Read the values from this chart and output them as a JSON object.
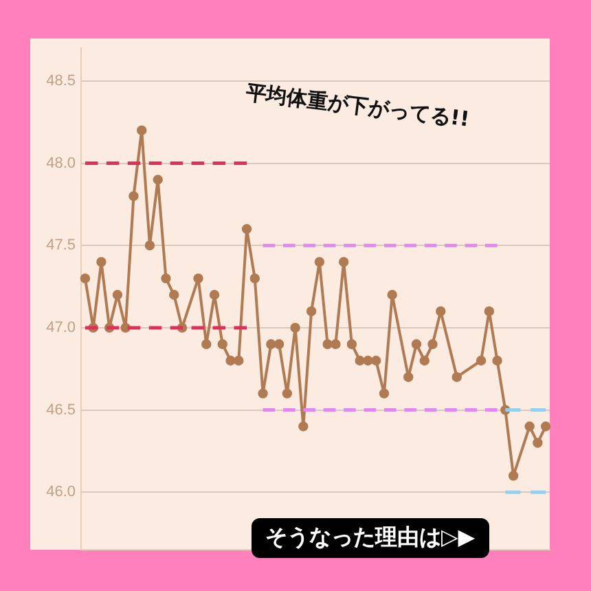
{
  "chart_data": {
    "type": "line",
    "categories": [
      null,
      null,
      null,
      null,
      null,
      null,
      null,
      null,
      null,
      null,
      null,
      null,
      null,
      null,
      null,
      null,
      null,
      null,
      null,
      null,
      null,
      null,
      null,
      null,
      null,
      null,
      null,
      null,
      null,
      null,
      null,
      null,
      null,
      null,
      null,
      null,
      null,
      null,
      null,
      null,
      null,
      null,
      null,
      null,
      null,
      null,
      null,
      null,
      null,
      null,
      null,
      null,
      null,
      null,
      null,
      null,
      null,
      null
    ],
    "series": [
      {
        "color": "#b07a52",
        "marker": "circle",
        "line_style": "solid",
        "values": [
          47.3,
          47.0,
          47.4,
          47.0,
          47.2,
          47.0,
          47.8,
          48.2,
          47.5,
          47.9,
          47.3,
          47.2,
          47.0,
          null,
          47.3,
          46.9,
          47.2,
          46.9,
          46.8,
          46.8,
          47.6,
          47.3,
          46.6,
          46.9,
          46.9,
          46.6,
          47.0,
          46.4,
          47.1,
          47.4,
          46.9,
          46.9,
          47.4,
          46.9,
          46.8,
          46.8,
          46.8,
          46.6,
          47.2,
          null,
          46.7,
          46.9,
          46.8,
          46.9,
          47.1,
          null,
          46.7,
          null,
          null,
          46.8,
          47.1,
          46.8,
          46.5,
          46.1,
          null,
          46.4,
          46.3,
          46.4
        ]
      },
      {
        "color": "#e0305a",
        "marker": "none",
        "line_style": "dashed",
        "values": [
          48.0,
          48.0,
          48.0,
          48.0,
          48.0,
          48.0,
          48.0,
          48.0,
          48.0,
          48.0,
          48.0,
          48.0,
          48.0,
          48.0,
          48.0,
          48.0,
          48.0,
          48.0,
          48.0,
          48.0,
          48.0,
          null,
          null,
          null,
          null,
          null,
          null,
          null,
          null,
          null,
          null,
          null,
          null,
          null,
          null,
          null,
          null,
          null,
          null,
          null,
          null,
          null,
          null,
          null,
          null,
          null,
          null,
          null,
          null,
          null,
          null,
          null,
          null,
          null,
          null,
          null,
          null,
          null
        ]
      },
      {
        "color": "#e0305a",
        "marker": "none",
        "line_style": "dashed",
        "values": [
          47.0,
          47.0,
          47.0,
          47.0,
          47.0,
          47.0,
          47.0,
          47.0,
          47.0,
          47.0,
          47.0,
          47.0,
          47.0,
          47.0,
          47.0,
          47.0,
          47.0,
          47.0,
          47.0,
          47.0,
          47.0,
          null,
          null,
          null,
          null,
          null,
          null,
          null,
          null,
          null,
          null,
          null,
          null,
          null,
          null,
          null,
          null,
          null,
          null,
          null,
          null,
          null,
          null,
          null,
          null,
          null,
          null,
          null,
          null,
          null,
          null,
          null,
          null,
          null,
          null,
          null,
          null,
          null
        ]
      },
      {
        "color": "#e08af0",
        "marker": "none",
        "line_style": "dashed",
        "values": [
          null,
          null,
          null,
          null,
          null,
          null,
          null,
          null,
          null,
          null,
          null,
          null,
          null,
          null,
          null,
          null,
          null,
          null,
          null,
          null,
          null,
          null,
          47.5,
          47.5,
          47.5,
          47.5,
          47.5,
          47.5,
          47.5,
          47.5,
          47.5,
          47.5,
          47.5,
          47.5,
          47.5,
          47.5,
          47.5,
          47.5,
          47.5,
          47.5,
          47.5,
          47.5,
          47.5,
          47.5,
          47.5,
          47.5,
          47.5,
          47.5,
          47.5,
          47.5,
          47.5,
          47.5,
          null,
          null,
          null,
          null,
          null,
          null
        ]
      },
      {
        "color": "#e08af0",
        "marker": "none",
        "line_style": "dashed",
        "values": [
          null,
          null,
          null,
          null,
          null,
          null,
          null,
          null,
          null,
          null,
          null,
          null,
          null,
          null,
          null,
          null,
          null,
          null,
          null,
          null,
          null,
          null,
          46.5,
          46.5,
          46.5,
          46.5,
          46.5,
          46.5,
          46.5,
          46.5,
          46.5,
          46.5,
          46.5,
          46.5,
          46.5,
          46.5,
          46.5,
          46.5,
          46.5,
          46.5,
          46.5,
          46.5,
          46.5,
          46.5,
          46.5,
          46.5,
          46.5,
          46.5,
          46.5,
          46.5,
          46.5,
          46.5,
          null,
          null,
          null,
          null,
          null,
          null
        ]
      },
      {
        "color": "#96cff0",
        "marker": "none",
        "line_style": "dashed",
        "values": [
          null,
          null,
          null,
          null,
          null,
          null,
          null,
          null,
          null,
          null,
          null,
          null,
          null,
          null,
          null,
          null,
          null,
          null,
          null,
          null,
          null,
          null,
          null,
          null,
          null,
          null,
          null,
          null,
          null,
          null,
          null,
          null,
          null,
          null,
          null,
          null,
          null,
          null,
          null,
          null,
          null,
          null,
          null,
          null,
          null,
          null,
          null,
          null,
          null,
          null,
          null,
          null,
          46.5,
          46.5,
          46.5,
          46.5,
          46.5,
          46.5
        ]
      },
      {
        "color": "#96cff0",
        "marker": "none",
        "line_style": "dashed",
        "values": [
          null,
          null,
          null,
          null,
          null,
          null,
          null,
          null,
          null,
          null,
          null,
          null,
          null,
          null,
          null,
          null,
          null,
          null,
          null,
          null,
          null,
          null,
          null,
          null,
          null,
          null,
          null,
          null,
          null,
          null,
          null,
          null,
          null,
          null,
          null,
          null,
          null,
          null,
          null,
          null,
          null,
          null,
          null,
          null,
          null,
          null,
          null,
          null,
          null,
          null,
          null,
          null,
          46.0,
          46.0,
          46.0,
          46.0,
          46.0,
          46.0
        ]
      }
    ],
    "ylim": [
      45.65,
      48.7
    ],
    "yticks": [
      {
        "value": 46.0,
        "label": "46.0"
      },
      {
        "value": 46.5,
        "label": "46.5"
      },
      {
        "value": 47.0,
        "label": "47.0"
      },
      {
        "value": 47.5,
        "label": "47.5"
      },
      {
        "value": 48.0,
        "label": "48.0"
      },
      {
        "value": 48.5,
        "label": "48.5"
      }
    ],
    "grid": "y",
    "legend": false,
    "tick_labels": "y",
    "annotations": [
      "平均体重が下がってる!!",
      "そうなった理由は▷▶"
    ]
  }
}
